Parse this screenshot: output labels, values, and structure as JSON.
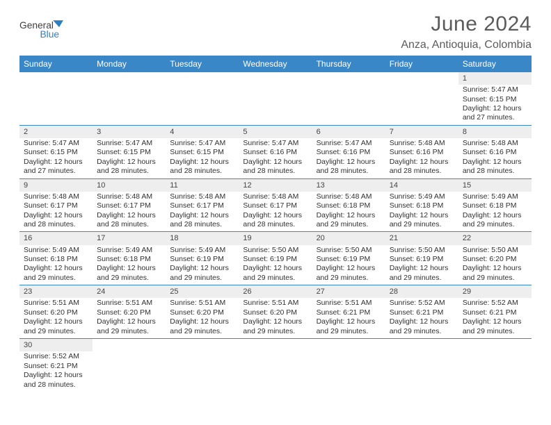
{
  "colors": {
    "header_bg": "#3a87c7",
    "header_text": "#ffffff",
    "daynum_bg": "#eeeeee",
    "title_color": "#5b5b5b",
    "text_color": "#303030",
    "border_color": "#3a87c7",
    "page_bg": "#ffffff",
    "logo_dark": "#3e3e3e",
    "logo_blue": "#2f7fbf"
  },
  "logo": {
    "text_part1": "General",
    "text_part2": "Blue"
  },
  "title": "June 2024",
  "subtitle": "Anza, Antioquia, Colombia",
  "weekdays": [
    "Sunday",
    "Monday",
    "Tuesday",
    "Wednesday",
    "Thursday",
    "Friday",
    "Saturday"
  ],
  "weeks": [
    [
      null,
      null,
      null,
      null,
      null,
      null,
      {
        "n": "1",
        "sunrise": "Sunrise: 5:47 AM",
        "sunset": "Sunset: 6:15 PM",
        "d1": "Daylight: 12 hours",
        "d2": "and 27 minutes."
      }
    ],
    [
      {
        "n": "2",
        "sunrise": "Sunrise: 5:47 AM",
        "sunset": "Sunset: 6:15 PM",
        "d1": "Daylight: 12 hours",
        "d2": "and 27 minutes."
      },
      {
        "n": "3",
        "sunrise": "Sunrise: 5:47 AM",
        "sunset": "Sunset: 6:15 PM",
        "d1": "Daylight: 12 hours",
        "d2": "and 28 minutes."
      },
      {
        "n": "4",
        "sunrise": "Sunrise: 5:47 AM",
        "sunset": "Sunset: 6:15 PM",
        "d1": "Daylight: 12 hours",
        "d2": "and 28 minutes."
      },
      {
        "n": "5",
        "sunrise": "Sunrise: 5:47 AM",
        "sunset": "Sunset: 6:16 PM",
        "d1": "Daylight: 12 hours",
        "d2": "and 28 minutes."
      },
      {
        "n": "6",
        "sunrise": "Sunrise: 5:47 AM",
        "sunset": "Sunset: 6:16 PM",
        "d1": "Daylight: 12 hours",
        "d2": "and 28 minutes."
      },
      {
        "n": "7",
        "sunrise": "Sunrise: 5:48 AM",
        "sunset": "Sunset: 6:16 PM",
        "d1": "Daylight: 12 hours",
        "d2": "and 28 minutes."
      },
      {
        "n": "8",
        "sunrise": "Sunrise: 5:48 AM",
        "sunset": "Sunset: 6:16 PM",
        "d1": "Daylight: 12 hours",
        "d2": "and 28 minutes."
      }
    ],
    [
      {
        "n": "9",
        "sunrise": "Sunrise: 5:48 AM",
        "sunset": "Sunset: 6:17 PM",
        "d1": "Daylight: 12 hours",
        "d2": "and 28 minutes."
      },
      {
        "n": "10",
        "sunrise": "Sunrise: 5:48 AM",
        "sunset": "Sunset: 6:17 PM",
        "d1": "Daylight: 12 hours",
        "d2": "and 28 minutes."
      },
      {
        "n": "11",
        "sunrise": "Sunrise: 5:48 AM",
        "sunset": "Sunset: 6:17 PM",
        "d1": "Daylight: 12 hours",
        "d2": "and 28 minutes."
      },
      {
        "n": "12",
        "sunrise": "Sunrise: 5:48 AM",
        "sunset": "Sunset: 6:17 PM",
        "d1": "Daylight: 12 hours",
        "d2": "and 28 minutes."
      },
      {
        "n": "13",
        "sunrise": "Sunrise: 5:48 AM",
        "sunset": "Sunset: 6:18 PM",
        "d1": "Daylight: 12 hours",
        "d2": "and 29 minutes."
      },
      {
        "n": "14",
        "sunrise": "Sunrise: 5:49 AM",
        "sunset": "Sunset: 6:18 PM",
        "d1": "Daylight: 12 hours",
        "d2": "and 29 minutes."
      },
      {
        "n": "15",
        "sunrise": "Sunrise: 5:49 AM",
        "sunset": "Sunset: 6:18 PM",
        "d1": "Daylight: 12 hours",
        "d2": "and 29 minutes."
      }
    ],
    [
      {
        "n": "16",
        "sunrise": "Sunrise: 5:49 AM",
        "sunset": "Sunset: 6:18 PM",
        "d1": "Daylight: 12 hours",
        "d2": "and 29 minutes."
      },
      {
        "n": "17",
        "sunrise": "Sunrise: 5:49 AM",
        "sunset": "Sunset: 6:18 PM",
        "d1": "Daylight: 12 hours",
        "d2": "and 29 minutes."
      },
      {
        "n": "18",
        "sunrise": "Sunrise: 5:49 AM",
        "sunset": "Sunset: 6:19 PM",
        "d1": "Daylight: 12 hours",
        "d2": "and 29 minutes."
      },
      {
        "n": "19",
        "sunrise": "Sunrise: 5:50 AM",
        "sunset": "Sunset: 6:19 PM",
        "d1": "Daylight: 12 hours",
        "d2": "and 29 minutes."
      },
      {
        "n": "20",
        "sunrise": "Sunrise: 5:50 AM",
        "sunset": "Sunset: 6:19 PM",
        "d1": "Daylight: 12 hours",
        "d2": "and 29 minutes."
      },
      {
        "n": "21",
        "sunrise": "Sunrise: 5:50 AM",
        "sunset": "Sunset: 6:19 PM",
        "d1": "Daylight: 12 hours",
        "d2": "and 29 minutes."
      },
      {
        "n": "22",
        "sunrise": "Sunrise: 5:50 AM",
        "sunset": "Sunset: 6:20 PM",
        "d1": "Daylight: 12 hours",
        "d2": "and 29 minutes."
      }
    ],
    [
      {
        "n": "23",
        "sunrise": "Sunrise: 5:51 AM",
        "sunset": "Sunset: 6:20 PM",
        "d1": "Daylight: 12 hours",
        "d2": "and 29 minutes."
      },
      {
        "n": "24",
        "sunrise": "Sunrise: 5:51 AM",
        "sunset": "Sunset: 6:20 PM",
        "d1": "Daylight: 12 hours",
        "d2": "and 29 minutes."
      },
      {
        "n": "25",
        "sunrise": "Sunrise: 5:51 AM",
        "sunset": "Sunset: 6:20 PM",
        "d1": "Daylight: 12 hours",
        "d2": "and 29 minutes."
      },
      {
        "n": "26",
        "sunrise": "Sunrise: 5:51 AM",
        "sunset": "Sunset: 6:20 PM",
        "d1": "Daylight: 12 hours",
        "d2": "and 29 minutes."
      },
      {
        "n": "27",
        "sunrise": "Sunrise: 5:51 AM",
        "sunset": "Sunset: 6:21 PM",
        "d1": "Daylight: 12 hours",
        "d2": "and 29 minutes."
      },
      {
        "n": "28",
        "sunrise": "Sunrise: 5:52 AM",
        "sunset": "Sunset: 6:21 PM",
        "d1": "Daylight: 12 hours",
        "d2": "and 29 minutes."
      },
      {
        "n": "29",
        "sunrise": "Sunrise: 5:52 AM",
        "sunset": "Sunset: 6:21 PM",
        "d1": "Daylight: 12 hours",
        "d2": "and 29 minutes."
      }
    ],
    [
      {
        "n": "30",
        "sunrise": "Sunrise: 5:52 AM",
        "sunset": "Sunset: 6:21 PM",
        "d1": "Daylight: 12 hours",
        "d2": "and 28 minutes."
      },
      null,
      null,
      null,
      null,
      null,
      null
    ]
  ]
}
